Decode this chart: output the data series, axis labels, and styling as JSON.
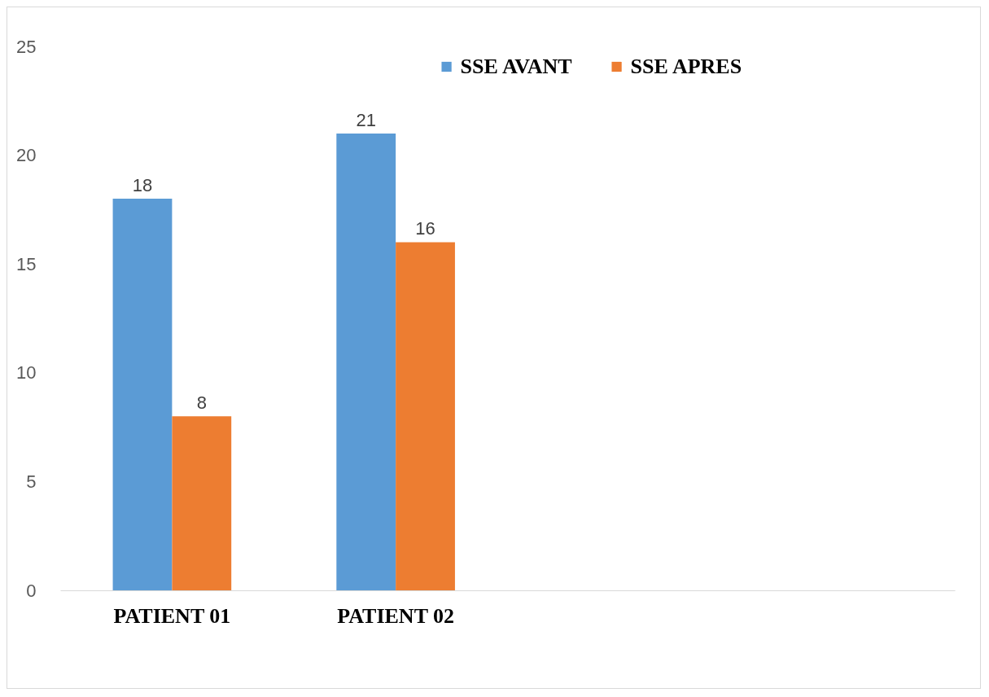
{
  "chart_data": {
    "type": "bar",
    "categories": [
      "PATIENT 01",
      "PATIENT 02",
      null,
      null
    ],
    "series": [
      {
        "name": "SSE AVANT",
        "color": "#5b9bd5",
        "values": [
          18,
          21,
          null,
          null
        ]
      },
      {
        "name": "SSE APRES",
        "color": "#ed7d31",
        "values": [
          8,
          16,
          null,
          null
        ]
      }
    ],
    "ylim": [
      0,
      25
    ],
    "yticks": [
      0,
      5,
      10,
      15,
      20,
      25
    ],
    "grid": false,
    "legend": "top",
    "data_labels": true
  }
}
